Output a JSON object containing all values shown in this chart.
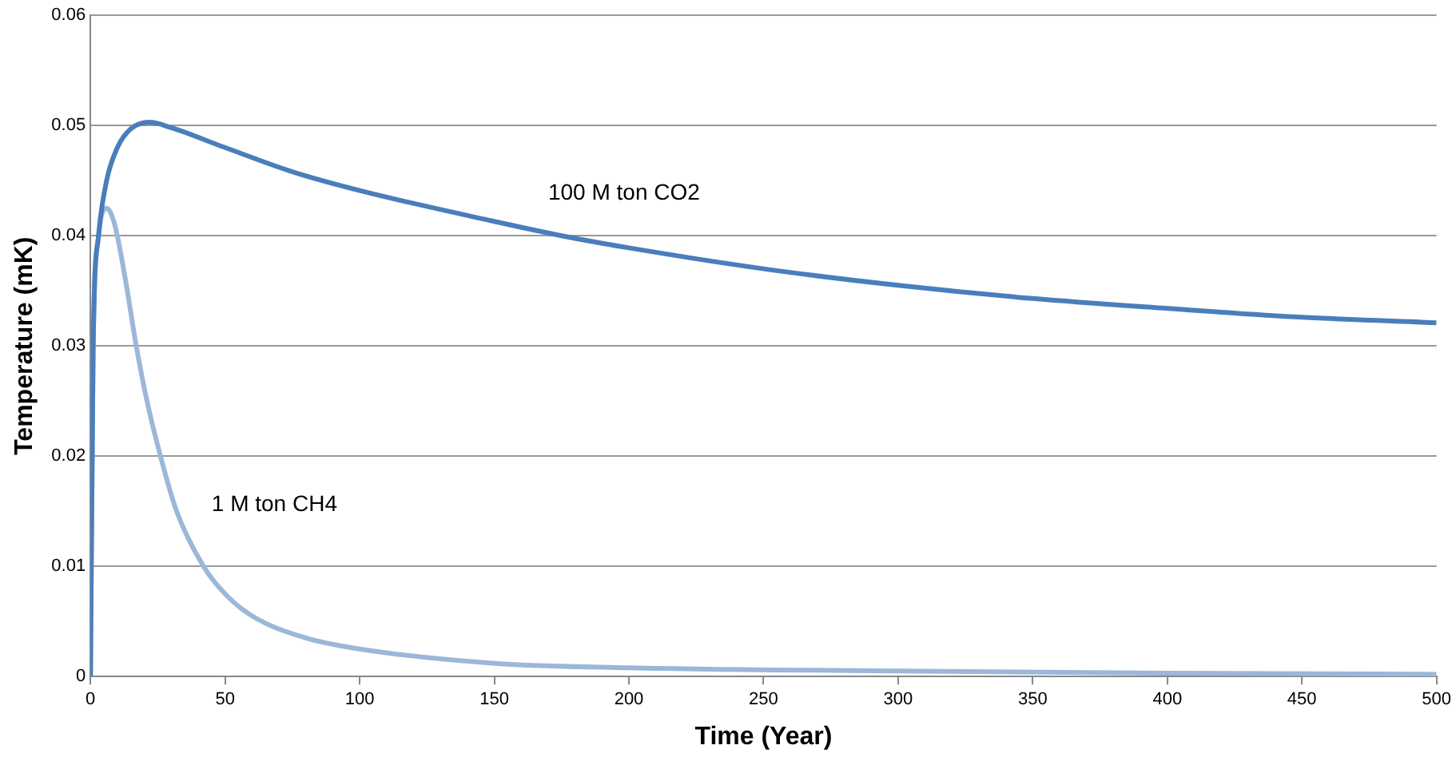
{
  "chart_data": {
    "type": "line",
    "xlabel": "Time (Year)",
    "ylabel": "Temperature (mK)",
    "xlim": [
      0,
      500
    ],
    "xticks": [
      0,
      50,
      100,
      150,
      200,
      250,
      300,
      350,
      400,
      450,
      500
    ],
    "ylim": [
      0,
      0.06
    ],
    "yticks": [
      0,
      0.01,
      0.02,
      0.03,
      0.04,
      0.05,
      0.06
    ],
    "grid": "y",
    "legend": false,
    "marker": "none",
    "line_style": "solid",
    "series": [
      {
        "name": "100 M ton CO2",
        "color": "#4a7ebb",
        "x": [
          0,
          1,
          3,
          6,
          10,
          15,
          22,
          30,
          50,
          75,
          100,
          150,
          175,
          200,
          250,
          300,
          350,
          400,
          450,
          500
        ],
        "values": [
          0,
          0.03,
          0.04,
          0.045,
          0.048,
          0.0497,
          0.0503,
          0.0498,
          0.048,
          0.0458,
          0.0441,
          0.0413,
          0.04,
          0.0389,
          0.037,
          0.0355,
          0.0343,
          0.0334,
          0.0326,
          0.0321
        ]
      },
      {
        "name": "1 M ton CH4",
        "color": "#9bb7d9",
        "x": [
          0,
          1,
          3,
          6,
          9,
          13,
          17,
          21,
          26,
          32,
          42,
          50,
          60,
          80,
          100,
          150,
          200,
          300,
          400,
          500
        ],
        "values": [
          0,
          0.03,
          0.04,
          0.0425,
          0.041,
          0.036,
          0.03,
          0.025,
          0.02,
          0.015,
          0.01,
          0.0075,
          0.0055,
          0.0035,
          0.0025,
          0.0012,
          0.0008,
          0.0005,
          0.0003,
          0.0002
        ]
      }
    ]
  }
}
